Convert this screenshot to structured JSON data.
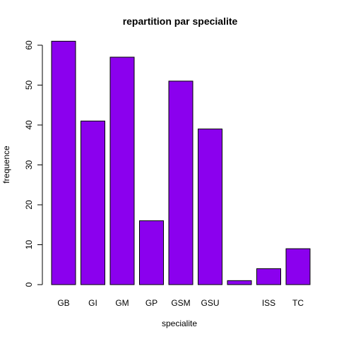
{
  "chart_data": {
    "type": "bar",
    "title": "repartition par specialite",
    "xlabel": "specialite",
    "ylabel": "frequence",
    "categories": [
      "GB",
      "GI",
      "GM",
      "GP",
      "GSM",
      "GSU",
      "",
      "ISS",
      "TC"
    ],
    "values": [
      61,
      41,
      57,
      16,
      51,
      39,
      1,
      4,
      9
    ],
    "ylim": [
      0,
      60
    ],
    "yticks": [
      0,
      10,
      20,
      30,
      40,
      50,
      60
    ],
    "bar_color": "#8B00EE",
    "grid": false,
    "legend": "none"
  }
}
